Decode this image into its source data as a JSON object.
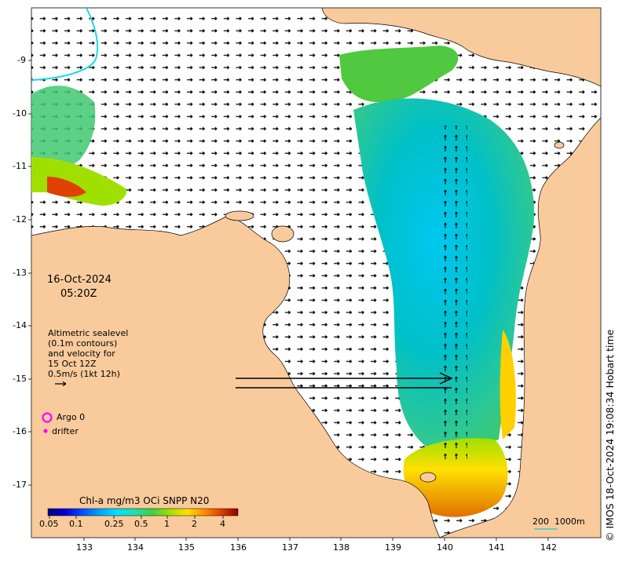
{
  "colors": {
    "land": "#f9cb9c",
    "sea": "#ffffff",
    "coastline": "#000000",
    "contour": "#00dddd",
    "argo_marker": "#ff00ff",
    "drifter_marker": "#ff00ff",
    "scale_bar": "#33cccc"
  },
  "annotations": {
    "date": "16-Oct-2024",
    "time": "05:20Z",
    "legend_line1": "Altimetric sealevel",
    "legend_line2": "(0.1m contours)",
    "legend_line3": "and velocity for",
    "legend_line4": "15 Oct 12Z",
    "legend_line5": "0.5m/s (1kt 12h)",
    "argo_label": "Argo 0",
    "drifter_label": "drifter",
    "colorbar_title": "Chl-a mg/m3 OCi SNPP N20",
    "scale_bar_label": "200  1000m",
    "copyright": "© IMOS 18-Oct-2024 19:08:34 Hobart time"
  },
  "colorbar": {
    "tick_labels": [
      "0.05",
      "0.1",
      "0.25",
      "0.5",
      "1",
      "2",
      "4"
    ],
    "tick_values": [
      0.05,
      0.1,
      0.25,
      0.5,
      1,
      2,
      4
    ],
    "scale": "log",
    "range": [
      0.05,
      5
    ],
    "colormap": [
      "#000080",
      "#0000d0",
      "#0050ff",
      "#00a0ff",
      "#00e0ff",
      "#20e0b0",
      "#40d040",
      "#a0e000",
      "#ffe000",
      "#ff9000",
      "#e04000",
      "#900000"
    ]
  },
  "axes": {
    "x_labels": [
      "133",
      "134",
      "135",
      "136",
      "137",
      "138",
      "139",
      "140",
      "141",
      "142"
    ],
    "x_values": [
      133,
      134,
      135,
      136,
      137,
      138,
      139,
      140,
      141,
      142
    ],
    "y_labels": [
      "-9",
      "-10",
      "-11",
      "-12",
      "-13",
      "-14",
      "-15",
      "-16",
      "-17"
    ],
    "y_values": [
      -9,
      -10,
      -11,
      -12,
      -13,
      -14,
      -15,
      -16,
      -17
    ],
    "lon_range": [
      132.0,
      143.1
    ],
    "lat_range": [
      -8.0,
      -17.75
    ]
  }
}
